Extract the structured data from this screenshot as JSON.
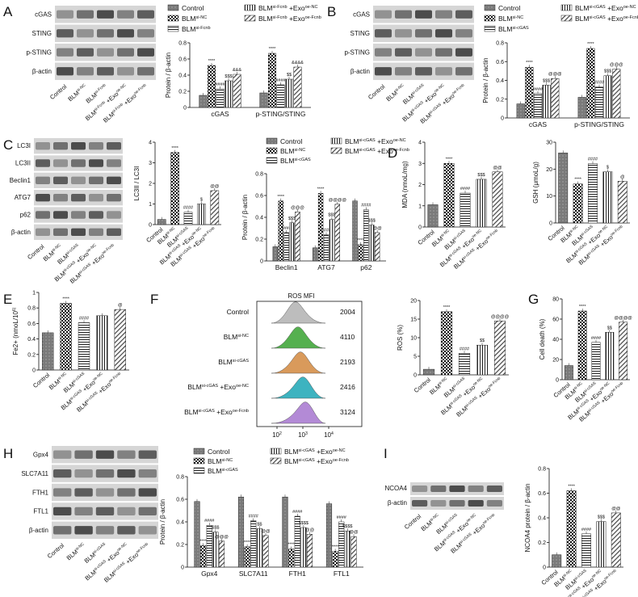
{
  "panels": {
    "A": {
      "label": "A",
      "blot_rows": [
        "cGAS",
        "STING",
        "p-STING",
        "β-actin"
      ],
      "lanes": [
        "Control",
        "BLM^si-NC",
        "BLM^si-Fcnb",
        "BLM^si-Fcnb +Exo^oe-NC",
        "BLM^si-Fcnb +Exo^oe-Fcnb"
      ],
      "legend": [
        "Control",
        "BLM^si-NC",
        "BLM^si-Fcnb",
        "BLM^si-Fcnb +Exo^oe-NC",
        "BLM^si-Fcnb +Exo^oe-Fcnb"
      ]
    },
    "B": {
      "label": "B",
      "blot_rows": [
        "cGAS",
        "STING",
        "p-STING",
        "β-actin"
      ],
      "lanes": [
        "Control",
        "BLM^si-NC",
        "BLM^si-cGAS",
        "BLM^si-cGAS +Exo^oe-NC",
        "BLM^si-cGAS +Exo^oe-Fcnb"
      ],
      "legend": [
        "Control",
        "BLM^si-NC",
        "BLM^si-cGAS",
        "BLM^si-cGAS +Exo^oe-NC",
        "BLM^si-cGAS +Exo^oe-Fcnb"
      ]
    },
    "C": {
      "label": "C",
      "blot_rows": [
        "LC3I",
        "LC3II",
        "Beclin1",
        "ATG7",
        "p62",
        "β-actin"
      ],
      "lanes": [
        "Control",
        "BLM^si-NC",
        "BLM^si-cGAS",
        "BLM^si-cGAS +Exo^oe-NC",
        "BLM^si-cGAS +Exo^oe-Fcnb"
      ],
      "legend": [
        "Control",
        "BLM^si-NC",
        "BLM^si-cGAS",
        "BLM^si-cGAS +Exo^oe-NC",
        "BLM^si-cGAS +Exo^oe-Fcnb"
      ]
    },
    "D": {
      "label": "D"
    },
    "E": {
      "label": "E"
    },
    "F": {
      "label": "F",
      "flow_title": "ROS MFI",
      "flow_rows": [
        {
          "name": "Control",
          "mfi": "2004",
          "color": "#bdbdbd"
        },
        {
          "name": "BLM^si-NC",
          "mfi": "4110",
          "color": "#55b04f"
        },
        {
          "name": "BLM^si-cGAS",
          "mfi": "2193",
          "color": "#d99a5b"
        },
        {
          "name": "BLM^si-cGAS +Exo^oe-NC",
          "mfi": "2416",
          "color": "#3db3c0"
        },
        {
          "name": "BLM^si-cGAS +Exo^oe-Fcnb",
          "mfi": "3124",
          "color": "#b38ad6"
        }
      ],
      "flow_ticks": [
        "10^2",
        "10^3",
        "10^4"
      ]
    },
    "G": {
      "label": "G"
    },
    "H": {
      "label": "H",
      "blot_rows": [
        "Gpx4",
        "SLC7A11",
        "FTH1",
        "FTL1",
        "β-actin"
      ],
      "lanes": [
        "Control",
        "BLM^si-NC",
        "BLM^si-cGAS",
        "BLM^si-cGAS +Exo^oe-NC",
        "BLM^si-cGAS +Exo^oe-Fcnb"
      ],
      "legend": [
        "Control",
        "BLM^si-NC",
        "BLM^si-cGAS",
        "BLM^si-cGAS +Exo^oe-NC",
        "BLM^si-cGAS +Exo^oe-Fcnb"
      ]
    },
    "I": {
      "label": "I",
      "blot_rows": [
        "NCOA4",
        "β-actin"
      ],
      "lanes": [
        "Control",
        "BLM^si-NC",
        "BLM^si-cGAS",
        "BLM^si-cGAS +Exo^oe-NC",
        "BLM^si-cGAS +Exo^oe-Fcnb"
      ]
    }
  },
  "chart_data": [
    {
      "id": "A",
      "type": "bar",
      "ylabel": "Protein / β-actin",
      "ylim": [
        0,
        0.8
      ],
      "yticks": [
        0,
        0.2,
        0.4,
        0.6,
        0.8
      ],
      "categories": [
        "cGAS",
        "p-STING/STING"
      ],
      "series": [
        {
          "name": "Control",
          "values": [
            0.15,
            0.18
          ],
          "sig": [
            "",
            ""
          ]
        },
        {
          "name": "BLM^si-NC",
          "values": [
            0.52,
            0.67
          ],
          "sig": [
            "****",
            "****"
          ]
        },
        {
          "name": "BLM^si-Fcnb",
          "values": [
            0.23,
            0.28
          ],
          "sig": [
            "####",
            "####"
          ]
        },
        {
          "name": "BLM^si-Fcnb +Exo^oe-NC",
          "values": [
            0.33,
            0.35
          ],
          "sig": [
            "$$$",
            "$$"
          ]
        },
        {
          "name": "BLM^si-Fcnb +Exo^oe-Fcnb",
          "values": [
            0.41,
            0.5
          ],
          "sig": [
            "&&&",
            "&&&&"
          ]
        }
      ]
    },
    {
      "id": "B",
      "type": "bar",
      "ylabel": "Protein / β-actin",
      "ylim": [
        0,
        0.8
      ],
      "yticks": [
        0,
        0.2,
        0.4,
        0.6,
        0.8
      ],
      "categories": [
        "cGAS",
        "p-STING/STING"
      ],
      "series": [
        {
          "name": "Control",
          "values": [
            0.15,
            0.22
          ],
          "sig": [
            "",
            ""
          ]
        },
        {
          "name": "BLM^si-NC",
          "values": [
            0.54,
            0.74
          ],
          "sig": [
            "****",
            "****"
          ]
        },
        {
          "name": "BLM^si-cGAS",
          "values": [
            0.26,
            0.33
          ],
          "sig": [
            "####",
            "####"
          ]
        },
        {
          "name": "BLM^si-cGAS +Exo^oe-NC",
          "values": [
            0.35,
            0.45
          ],
          "sig": [
            "$$$",
            "$$$"
          ]
        },
        {
          "name": "BLM^si-cGAS +Exo^oe-Fcnb",
          "values": [
            0.42,
            0.52
          ],
          "sig": [
            "@@@",
            "@@@"
          ]
        }
      ]
    },
    {
      "id": "C1",
      "type": "bar",
      "ylabel": "LC3II / LC3I",
      "ylim": [
        0,
        4
      ],
      "yticks": [
        0,
        1,
        2,
        3,
        4
      ],
      "categories": [
        "Control",
        "BLM^si-NC",
        "BLM^si-cGAS",
        "BLM^si-cGAS +Exo^oe-NC",
        "BLM^si-cGAS +Exo^oe-Fcnb"
      ],
      "values": [
        0.25,
        3.5,
        0.6,
        1.0,
        1.65
      ],
      "sig": [
        "",
        "****",
        "####",
        "$",
        "@@"
      ]
    },
    {
      "id": "C2",
      "type": "bar",
      "ylabel": "Protein / β-actin",
      "ylim": [
        0,
        0.8
      ],
      "yticks": [
        0,
        0.2,
        0.4,
        0.6,
        0.8
      ],
      "categories": [
        "Beclin1",
        "ATG7",
        "p62"
      ],
      "series": [
        {
          "name": "Control",
          "values": [
            0.13,
            0.12,
            0.55
          ],
          "sig": [
            "",
            "",
            ""
          ]
        },
        {
          "name": "BLM^si-NC",
          "values": [
            0.55,
            0.62,
            0.15
          ],
          "sig": [
            "****",
            "****",
            "****"
          ]
        },
        {
          "name": "BLM^si-cGAS",
          "values": [
            0.26,
            0.24,
            0.47
          ],
          "sig": [
            "####",
            "####",
            "####"
          ]
        },
        {
          "name": "BLM^si-cGAS +Exo^oe-NC",
          "values": [
            0.35,
            0.38,
            0.33
          ],
          "sig": [
            "$$$",
            "$$$",
            "$$$"
          ]
        },
        {
          "name": "BLM^si-cGAS +Exo^oe-Fcnb",
          "values": [
            0.45,
            0.52,
            0.26
          ],
          "sig": [
            "@@@",
            "@@@@",
            "@@"
          ]
        }
      ]
    },
    {
      "id": "D1",
      "type": "bar",
      "ylabel": "MDA (nmoL/mg)",
      "ylim": [
        0,
        4
      ],
      "yticks": [
        0,
        1,
        2,
        3,
        4
      ],
      "categories": [
        "Control",
        "BLM^si-NC",
        "BLM^si-cGAS",
        "BLM^si-cGAS +Exo^oe-NC",
        "BLM^si-cGAS +Exo^oe-Fcnb"
      ],
      "values": [
        1.05,
        3.0,
        1.6,
        2.25,
        2.6
      ],
      "sig": [
        "",
        "****",
        "####",
        "$$$",
        "@@"
      ]
    },
    {
      "id": "D2",
      "type": "bar",
      "ylabel": "GSH (μmoL/g)",
      "ylim": [
        0,
        30
      ],
      "yticks": [
        0,
        10,
        20,
        30
      ],
      "categories": [
        "Control",
        "BLM^si-NC",
        "BLM^si-cGAS",
        "BLM^si-cGAS +Exo^oe-NC",
        "BLM^si-cGAS +Exo^oe-Fcnb"
      ],
      "values": [
        26,
        14.5,
        22,
        19,
        15.5
      ],
      "sig": [
        "",
        "****",
        "####",
        "$",
        "@"
      ]
    },
    {
      "id": "E",
      "type": "bar",
      "ylabel": "Fe2+ (nmoL/10^6)",
      "ylim": [
        0,
        1.0
      ],
      "yticks": [
        0,
        0.2,
        0.4,
        0.6,
        0.8,
        1.0
      ],
      "categories": [
        "Control",
        "BLM^si-NC",
        "BLM^si-cGAS",
        "BLM^si-cGAS +Exo^oe-NC",
        "BLM^si-cGAS +Exo^oe-Fcnb"
      ],
      "values": [
        0.48,
        0.86,
        0.61,
        0.7,
        0.78
      ],
      "sig": [
        "",
        "****",
        "####",
        "",
        "@"
      ]
    },
    {
      "id": "F",
      "type": "bar",
      "ylabel": "ROS (%)",
      "ylim": [
        0,
        20
      ],
      "yticks": [
        0,
        5,
        10,
        15,
        20
      ],
      "categories": [
        "Control",
        "BLM^si-NC",
        "BLM^si-cGAS",
        "BLM^si-cGAS +Exo^oe-NC",
        "BLM^si-cGAS +Exo^oe-Fcnb"
      ],
      "values": [
        1.5,
        17,
        5.8,
        8,
        14.5
      ],
      "sig": [
        "",
        "****",
        "####",
        "$$",
        "@@@@"
      ]
    },
    {
      "id": "G",
      "type": "bar",
      "ylabel": "Cell death (%)",
      "ylim": [
        0,
        80
      ],
      "yticks": [
        0,
        20,
        40,
        60,
        80
      ],
      "categories": [
        "Control",
        "BLM^si-NC",
        "BLM^si-cGAS",
        "BLM^si-cGAS +Exo^oe-NC",
        "BLM^si-cGAS +Exo^oe-Fcnb"
      ],
      "values": [
        14,
        68,
        37,
        47,
        57
      ],
      "sig": [
        "",
        "****",
        "####",
        "$$",
        "@@@@"
      ]
    },
    {
      "id": "H",
      "type": "bar",
      "ylabel": "Protein / β-actin",
      "ylim": [
        0,
        0.8
      ],
      "yticks": [
        0,
        0.2,
        0.4,
        0.6,
        0.8
      ],
      "categories": [
        "Gpx4",
        "SLC7A11",
        "FTH1",
        "FTL1"
      ],
      "series": [
        {
          "name": "Control",
          "values": [
            0.58,
            0.62,
            0.62,
            0.56
          ],
          "sig": [
            "",
            "",
            "",
            ""
          ]
        },
        {
          "name": "BLM^si-NC",
          "values": [
            0.19,
            0.18,
            0.16,
            0.14
          ],
          "sig": [
            "****",
            "****",
            "****",
            "****"
          ]
        },
        {
          "name": "BLM^si-cGAS",
          "values": [
            0.37,
            0.41,
            0.45,
            0.4
          ],
          "sig": [
            "####",
            "####",
            "####",
            "####"
          ]
        },
        {
          "name": "BLM^si-cGAS +Exo^oe-NC",
          "values": [
            0.31,
            0.34,
            0.35,
            0.32
          ],
          "sig": [
            "$$$",
            "$$",
            "$$$$",
            "$$$$"
          ]
        },
        {
          "name": "BLM^si-cGAS +Exo^oe-Fcnb",
          "values": [
            0.23,
            0.28,
            0.29,
            0.27
          ],
          "sig": [
            "@@@",
            "@@",
            "@@",
            "@@"
          ]
        }
      ]
    },
    {
      "id": "I",
      "type": "bar",
      "ylabel": "NCOA4 protein / β-actin",
      "ylim": [
        0,
        0.8
      ],
      "yticks": [
        0,
        0.2,
        0.4,
        0.6,
        0.8
      ],
      "categories": [
        "Control",
        "BLM^si-NC",
        "BLM^si-cGAS",
        "BLM^si-cGAS +Exo^oe-NC",
        "BLM^si-cGAS +Exo^oe-Fcnb"
      ],
      "values": [
        0.1,
        0.62,
        0.27,
        0.37,
        0.44
      ],
      "sig": [
        "",
        "****",
        "####",
        "$$$",
        "@@"
      ]
    }
  ]
}
